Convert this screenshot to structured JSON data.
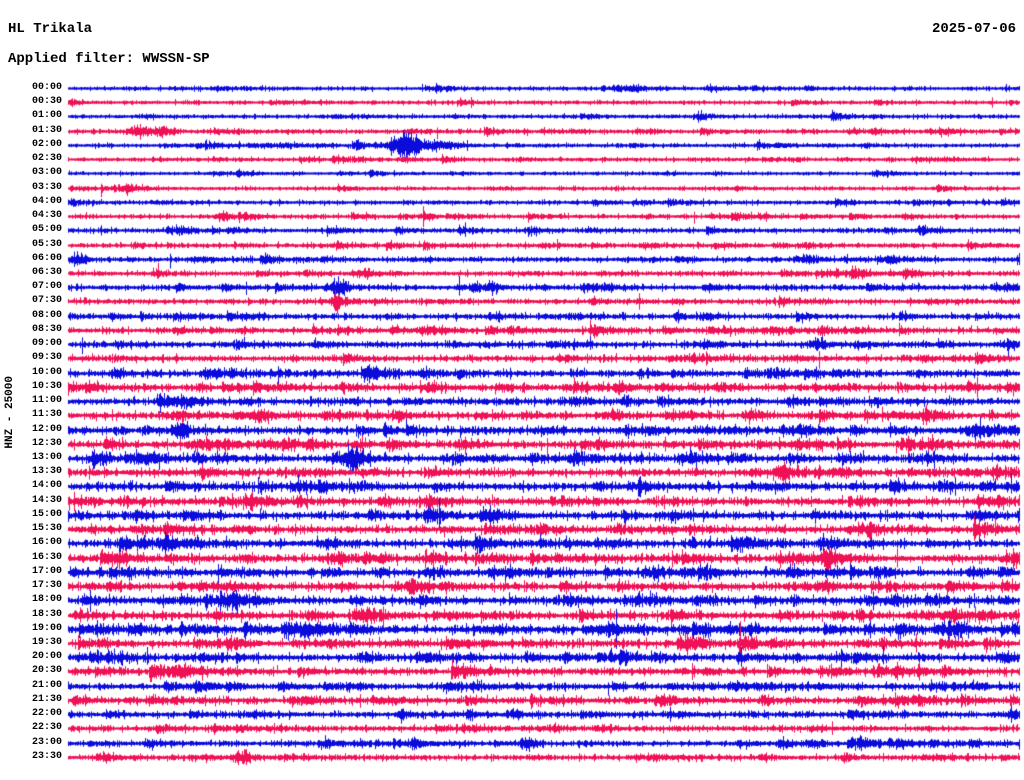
{
  "header": {
    "station": "HL Trikala",
    "date": "2025-07-06",
    "filter": "Applied filter: WWSSN-SP"
  },
  "axis": {
    "channel_label": "HNZ - 25000"
  },
  "colors": {
    "trace_blue": "#0b0bdc",
    "trace_red": "#ef1055",
    "text": "#000000",
    "background": "#ffffff"
  },
  "chart_data": {
    "type": "line",
    "subtype": "helicorder-seismogram",
    "title": "HL Trikala",
    "xlabel": "",
    "ylabel": "HNZ - 25000",
    "row_duration_minutes": 30,
    "rows": [
      {
        "time": "00:00",
        "color": "blue",
        "activity": 0.3
      },
      {
        "time": "00:30",
        "color": "red",
        "activity": 0.3
      },
      {
        "time": "01:00",
        "color": "blue",
        "activity": 0.3
      },
      {
        "time": "01:30",
        "color": "red",
        "activity": 0.35
      },
      {
        "time": "02:00",
        "color": "blue",
        "activity": 0.3
      },
      {
        "time": "02:30",
        "color": "red",
        "activity": 0.3
      },
      {
        "time": "03:00",
        "color": "blue",
        "activity": 0.25
      },
      {
        "time": "03:30",
        "color": "red",
        "activity": 0.3
      },
      {
        "time": "04:00",
        "color": "blue",
        "activity": 0.35
      },
      {
        "time": "04:30",
        "color": "red",
        "activity": 0.35
      },
      {
        "time": "05:00",
        "color": "blue",
        "activity": 0.4
      },
      {
        "time": "05:30",
        "color": "red",
        "activity": 0.4
      },
      {
        "time": "06:00",
        "color": "blue",
        "activity": 0.45
      },
      {
        "time": "06:30",
        "color": "red",
        "activity": 0.45
      },
      {
        "time": "07:00",
        "color": "blue",
        "activity": 0.5
      },
      {
        "time": "07:30",
        "color": "red",
        "activity": 0.5
      },
      {
        "time": "08:00",
        "color": "blue",
        "activity": 0.5
      },
      {
        "time": "08:30",
        "color": "red",
        "activity": 0.55
      },
      {
        "time": "09:00",
        "color": "blue",
        "activity": 0.6
      },
      {
        "time": "09:30",
        "color": "red",
        "activity": 0.6
      },
      {
        "time": "10:00",
        "color": "blue",
        "activity": 0.65
      },
      {
        "time": "10:30",
        "color": "red",
        "activity": 0.7
      },
      {
        "time": "11:00",
        "color": "blue",
        "activity": 0.7
      },
      {
        "time": "11:30",
        "color": "red",
        "activity": 0.7
      },
      {
        "time": "12:00",
        "color": "blue",
        "activity": 0.75
      },
      {
        "time": "12:30",
        "color": "red",
        "activity": 0.75
      },
      {
        "time": "13:00",
        "color": "blue",
        "activity": 0.75
      },
      {
        "time": "13:30",
        "color": "red",
        "activity": 0.75
      },
      {
        "time": "14:00",
        "color": "blue",
        "activity": 0.8
      },
      {
        "time": "14:30",
        "color": "red",
        "activity": 0.8
      },
      {
        "time": "15:00",
        "color": "blue",
        "activity": 0.8
      },
      {
        "time": "15:30",
        "color": "red",
        "activity": 0.8
      },
      {
        "time": "16:00",
        "color": "blue",
        "activity": 0.8
      },
      {
        "time": "16:30",
        "color": "red",
        "activity": 0.8
      },
      {
        "time": "17:00",
        "color": "blue",
        "activity": 0.8
      },
      {
        "time": "17:30",
        "color": "red",
        "activity": 0.8
      },
      {
        "time": "18:00",
        "color": "blue",
        "activity": 0.8
      },
      {
        "time": "18:30",
        "color": "red",
        "activity": 0.8
      },
      {
        "time": "19:00",
        "color": "blue",
        "activity": 0.8
      },
      {
        "time": "19:30",
        "color": "red",
        "activity": 0.75
      },
      {
        "time": "20:00",
        "color": "blue",
        "activity": 0.75
      },
      {
        "time": "20:30",
        "color": "red",
        "activity": 0.7
      },
      {
        "time": "21:00",
        "color": "blue",
        "activity": 0.65
      },
      {
        "time": "21:30",
        "color": "red",
        "activity": 0.65
      },
      {
        "time": "22:00",
        "color": "blue",
        "activity": 0.6
      },
      {
        "time": "22:30",
        "color": "red",
        "activity": 0.55
      },
      {
        "time": "23:00",
        "color": "blue",
        "activity": 0.5
      },
      {
        "time": "23:30",
        "color": "red",
        "activity": 0.5
      }
    ],
    "events": [
      {
        "row": 3,
        "pos": 0.075,
        "amp": 6,
        "width": 10
      },
      {
        "row": 3,
        "pos": 0.1,
        "amp": 4,
        "width": 14
      },
      {
        "row": 4,
        "pos": 0.355,
        "amp": 15,
        "width": 12
      },
      {
        "row": 4,
        "pos": 0.385,
        "amp": 5,
        "width": 28
      },
      {
        "row": 12,
        "pos": 0.012,
        "amp": 7,
        "width": 9
      },
      {
        "row": 14,
        "pos": 0.285,
        "amp": 8,
        "width": 9
      },
      {
        "row": 15,
        "pos": 0.282,
        "amp": 13,
        "width": 4
      },
      {
        "row": 23,
        "pos": 0.118,
        "amp": 5,
        "width": 5
      },
      {
        "row": 24,
        "pos": 0.118,
        "amp": 10,
        "width": 7
      },
      {
        "row": 26,
        "pos": 0.3,
        "amp": 5,
        "width": 10
      },
      {
        "row": 46,
        "pos": 0.485,
        "amp": 6,
        "width": 9
      },
      {
        "row": 47,
        "pos": 0.185,
        "amp": 7,
        "width": 7
      }
    ]
  }
}
